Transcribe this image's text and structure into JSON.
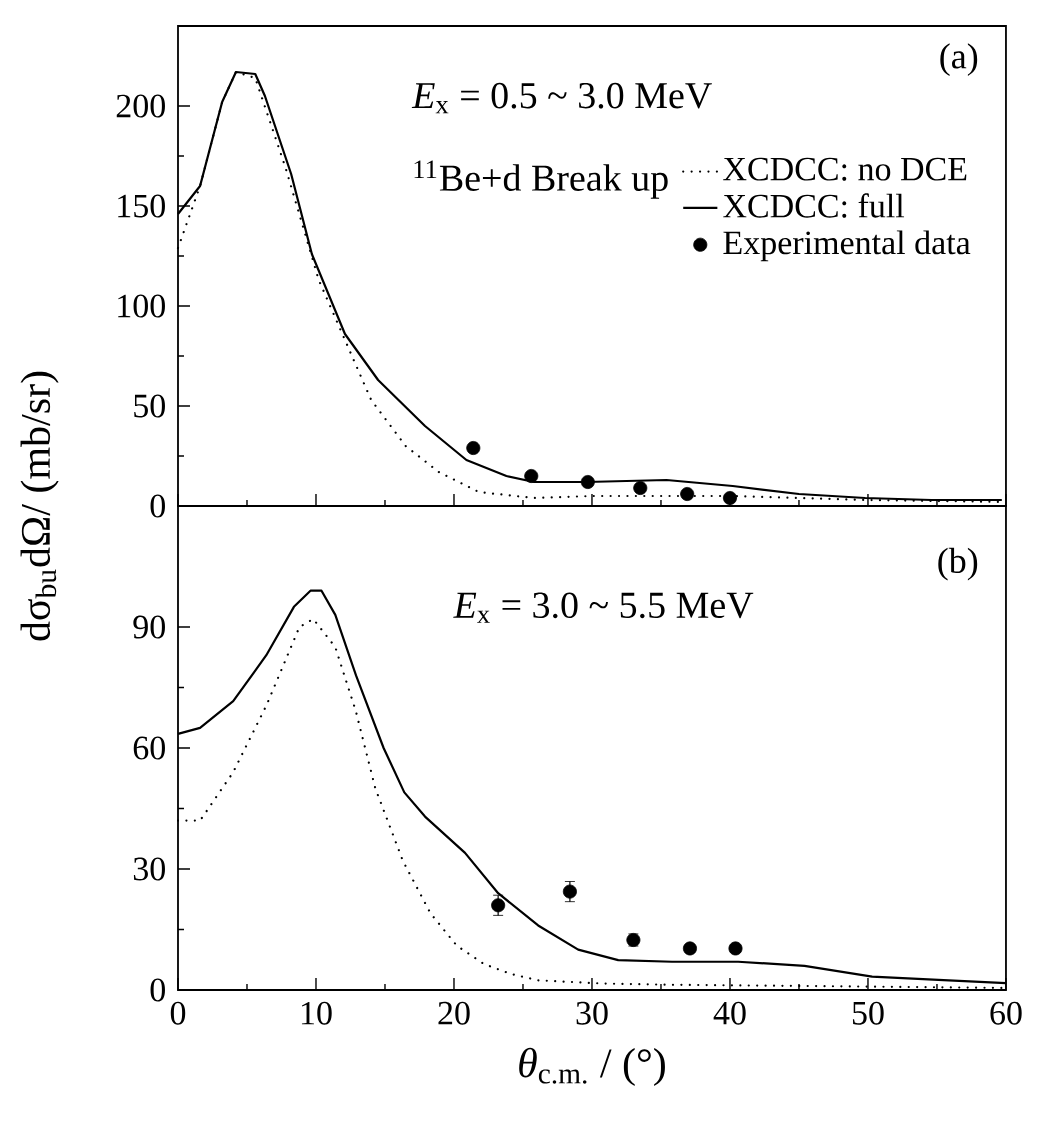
{
  "chart_data": [
    {
      "type": "line",
      "annotations": [
        "(a)",
        "*E*$_{x}$ = 0.5 ~ 3.0 MeV",
        "$^{11}$Be+d   Break up"
      ],
      "ylabel": "dσ$_{bu}$dΩ/ (mb/sr)",
      "xlim": [
        0,
        60
      ],
      "ylim": [
        0,
        240
      ],
      "xticks": [
        0,
        10,
        20,
        30,
        40,
        50,
        60
      ],
      "yticks": [
        0,
        50,
        100,
        150,
        200
      ],
      "tick_labels": "y",
      "legend": "right",
      "series": [
        {
          "name": "XCDCC: no DCE",
          "line_style": "dotted",
          "marker": "none",
          "color": "#000000",
          "x": [
            0,
            1.6,
            3.2,
            4.2,
            5.6,
            7.8,
            10.2,
            12.1,
            14,
            16.5,
            18.9,
            21.8,
            25.8,
            30,
            40,
            45,
            50,
            60
          ],
          "values": [
            129,
            160,
            202,
            217,
            214,
            169,
            113,
            83,
            53,
            30,
            17,
            7,
            4,
            5,
            5,
            4,
            3,
            2
          ]
        },
        {
          "name": "XCDCC: full",
          "line_style": "solid",
          "marker": "none",
          "color": "#000000",
          "x": [
            0,
            1.6,
            3.2,
            4.2,
            5.6,
            6.3,
            8.2,
            9.7,
            12.1,
            14.5,
            17.9,
            20.9,
            23.8,
            25.8,
            29.6,
            35.4,
            40.2,
            45,
            49.8,
            54.6,
            59.7
          ],
          "values": [
            146,
            160,
            202,
            217,
            216,
            205,
            166,
            126,
            86,
            63,
            40,
            23,
            15,
            12,
            12,
            13,
            10,
            6,
            4,
            3,
            3
          ]
        },
        {
          "name": "Experimental data",
          "type": "scatter",
          "marker": "circle",
          "color": "#000000",
          "x": [
            21.4,
            25.6,
            29.7,
            33.5,
            36.9,
            40.0
          ],
          "values": [
            29,
            15,
            12,
            9,
            6,
            4
          ]
        }
      ]
    },
    {
      "type": "line",
      "annotations": [
        "(b)",
        "*E*$_{x}$ = 3.0 ~ 5.5 MeV"
      ],
      "xlabel": "*θ*$_{c.m.}$ / (°)",
      "xlim": [
        0,
        60
      ],
      "ylim": [
        0,
        120
      ],
      "xticks": [
        0,
        10,
        20,
        30,
        40,
        50,
        60
      ],
      "yticks": [
        0,
        30,
        60,
        90
      ],
      "series": [
        {
          "line_style": "dotted",
          "marker": "none",
          "color": "#000000",
          "x": [
            0,
            1.6,
            4,
            6.4,
            8.8,
            9.8,
            11.4,
            12.9,
            14.3,
            16.3,
            18.3,
            20.2,
            22.2,
            24.1,
            26.1,
            30.8,
            35.6,
            45.2,
            60
          ],
          "values": [
            42,
            42,
            54,
            70.5,
            90,
            92,
            85,
            69,
            50,
            32,
            19,
            11,
            6.4,
            4,
            2.4,
            1.6,
            1.3,
            1,
            0.5
          ]
        },
        {
          "line_style": "solid",
          "marker": "none",
          "color": "#000000",
          "x": [
            0,
            1.6,
            4,
            6.4,
            8.4,
            9.6,
            10.4,
            11.4,
            12.9,
            14.9,
            16.4,
            17.9,
            20.8,
            23.2,
            26.1,
            29,
            31.9,
            35.8,
            40.6,
            45.4,
            50.3,
            55.1,
            60
          ],
          "values": [
            63.5,
            65,
            71.6,
            83,
            95,
            99,
            99,
            93,
            78,
            60,
            49,
            43,
            34,
            24,
            16,
            10,
            7.4,
            7,
            7,
            6,
            3.3,
            2.5,
            1.7
          ]
        },
        {
          "type": "scatter",
          "marker": "circle",
          "color": "#000000",
          "x": [
            23.2,
            28.4,
            33.0,
            37.1,
            40.4
          ],
          "values": [
            21,
            24.4,
            12.4,
            10.3,
            10.3
          ],
          "errors": [
            2.5,
            2.5,
            1.5,
            1,
            1
          ]
        }
      ]
    }
  ]
}
